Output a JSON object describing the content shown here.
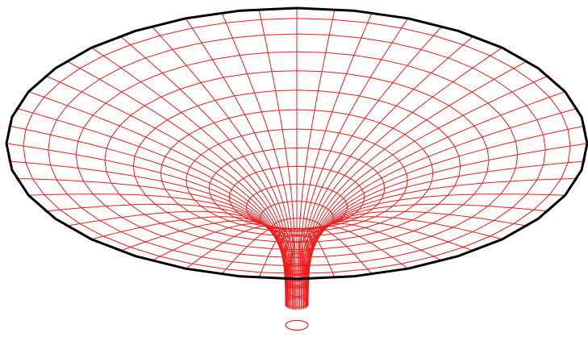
{
  "figure": {
    "kind": "wireframe-surface",
    "shape": "funnel",
    "colors": {
      "background": "#ffffff",
      "mesh": "#ee1c1c",
      "rim": "#000000"
    },
    "mesh": {
      "angular_segments": 48,
      "radial_rings": 16
    }
  }
}
